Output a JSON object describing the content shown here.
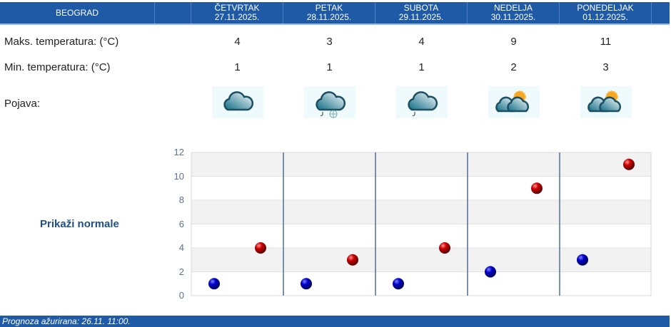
{
  "header": {
    "city": "BEOGRAD",
    "days": [
      {
        "name": "ČETVRTAK",
        "date": "27.11.2025."
      },
      {
        "name": "PETAK",
        "date": "28.11.2025."
      },
      {
        "name": "SUBOTA",
        "date": "29.11.2025."
      },
      {
        "name": "NEDELJA",
        "date": "30.11.2025."
      },
      {
        "name": "PONEDELJAK",
        "date": "01.12.2025."
      }
    ]
  },
  "rows": {
    "max_label": "Maks. temperatura: (°C)",
    "min_label": "Min. temperatura: (°C)",
    "phenomenon_label": "Pojava:"
  },
  "max": [
    4,
    3,
    4,
    9,
    11
  ],
  "min": [
    1,
    1,
    1,
    2,
    3
  ],
  "icons": [
    "cloudy-icon",
    "cloudy-rain-snow-icon",
    "cloudy-light-rain-icon",
    "partly-cloudy-icon",
    "partly-cloudy-icon"
  ],
  "show_normals": "Prikaži normale",
  "chart_data": {
    "type": "scatter",
    "categories": [
      "27.11.2025.",
      "28.11.2025.",
      "29.11.2025.",
      "30.11.2025.",
      "01.12.2025."
    ],
    "series": [
      {
        "values": [
          1,
          1,
          1,
          2,
          3
        ],
        "color": "#0000cc"
      },
      {
        "values": [
          4,
          3,
          4,
          9,
          11
        ],
        "color": "#cc0000"
      }
    ],
    "ylim": [
      0,
      12
    ],
    "yticks": [
      "0",
      "2",
      "4",
      "6",
      "8",
      "10",
      "12"
    ],
    "grid": true
  },
  "footer": "Prognoza ažurirana:  26.11. 11:00."
}
